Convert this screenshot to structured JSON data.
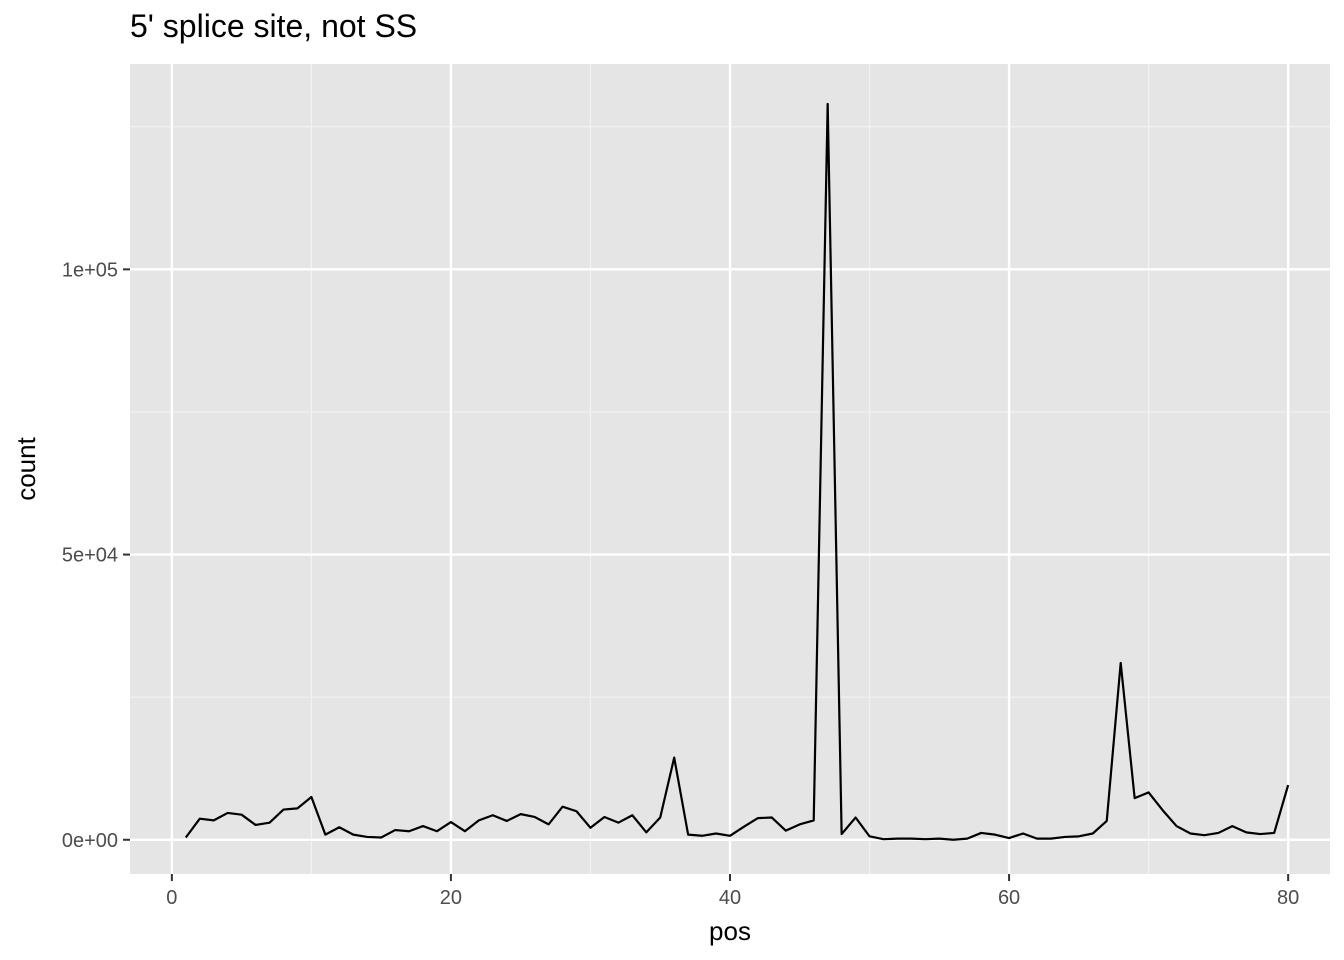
{
  "chart_data": {
    "type": "line",
    "title": "5' splice site, not SS",
    "xlabel": "pos",
    "ylabel": "count",
    "xlim": [
      -3,
      83
    ],
    "ylim": [
      -6000,
      136000
    ],
    "x_ticks": [
      0,
      20,
      40,
      60,
      80
    ],
    "x_tick_labels": [
      "0",
      "20",
      "40",
      "60",
      "80"
    ],
    "y_ticks": [
      0,
      50000,
      100000
    ],
    "y_tick_labels": [
      "0e+00",
      "5e+04",
      "1e+05"
    ],
    "grid": true,
    "series": [
      {
        "color": "#000000",
        "x": [
          1,
          2,
          3,
          4,
          5,
          6,
          7,
          8,
          9,
          10,
          11,
          12,
          13,
          14,
          15,
          16,
          17,
          18,
          19,
          20,
          21,
          22,
          23,
          24,
          25,
          26,
          27,
          28,
          29,
          30,
          31,
          32,
          33,
          34,
          35,
          36,
          37,
          38,
          39,
          40,
          41,
          42,
          43,
          44,
          45,
          46,
          47,
          48,
          49,
          50,
          51,
          52,
          53,
          54,
          55,
          56,
          57,
          58,
          59,
          60,
          61,
          62,
          63,
          64,
          65,
          66,
          67,
          68,
          69,
          70,
          71,
          72,
          73,
          74,
          75,
          76,
          77,
          78,
          79,
          80
        ],
        "y": [
          400,
          3700,
          3400,
          4700,
          4400,
          2600,
          3000,
          5300,
          5500,
          7500,
          900,
          2200,
          900,
          500,
          400,
          1700,
          1500,
          2400,
          1500,
          3100,
          1500,
          3400,
          4300,
          3300,
          4500,
          4000,
          2700,
          5800,
          5000,
          2100,
          4000,
          3000,
          4300,
          1300,
          3900,
          14400,
          900,
          700,
          1100,
          700,
          2300,
          3800,
          3900,
          1600,
          2700,
          3400,
          129000,
          1000,
          3900,
          600,
          100,
          200,
          200,
          100,
          200,
          0,
          200,
          1200,
          900,
          300,
          1100,
          200,
          200,
          500,
          600,
          1100,
          3300,
          31000,
          7300,
          8300,
          5200,
          2400,
          1100,
          800,
          1200,
          2400,
          1300,
          1000,
          1200,
          9600
        ]
      }
    ]
  }
}
